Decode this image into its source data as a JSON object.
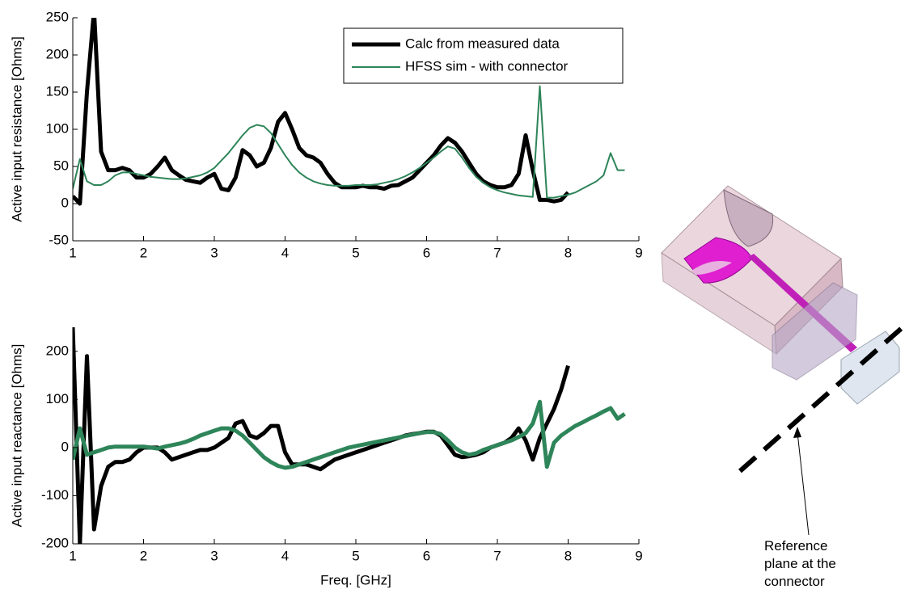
{
  "chart_data": [
    {
      "type": "line",
      "ylabel": "Active input resistance [Ohms]",
      "xlim": [
        1,
        9
      ],
      "xticks": [
        1,
        2,
        3,
        4,
        5,
        6,
        7,
        8,
        9
      ],
      "ylim": [
        -50,
        250
      ],
      "yticks": [
        -50,
        0,
        50,
        100,
        150,
        200,
        250
      ],
      "legend": "upper right",
      "x": [
        1,
        1.1,
        1.2,
        1.3,
        1.4,
        1.5,
        1.6,
        1.7,
        1.8,
        1.9,
        2,
        2.1,
        2.2,
        2.3,
        2.4,
        2.5,
        2.6,
        2.7,
        2.8,
        2.9,
        3,
        3.1,
        3.2,
        3.3,
        3.4,
        3.5,
        3.6,
        3.7,
        3.8,
        3.9,
        4,
        4.1,
        4.2,
        4.3,
        4.4,
        4.5,
        4.6,
        4.7,
        4.8,
        4.9,
        5,
        5.1,
        5.2,
        5.3,
        5.4,
        5.5,
        5.6,
        5.7,
        5.8,
        5.9,
        6,
        6.1,
        6.2,
        6.3,
        6.4,
        6.5,
        6.6,
        6.7,
        6.8,
        6.9,
        7,
        7.1,
        7.2,
        7.3,
        7.4,
        7.5,
        7.6,
        7.7,
        7.8,
        7.9,
        8,
        8.1,
        8.2,
        8.3,
        8.4,
        8.5,
        8.6,
        8.7,
        8.8
      ],
      "series": [
        {
          "name": "Calc from measured data",
          "color": "#000000",
          "line_width": 5,
          "values": [
            10,
            0,
            150,
            260,
            70,
            45,
            45,
            48,
            45,
            35,
            35,
            40,
            50,
            62,
            45,
            38,
            32,
            30,
            28,
            35,
            40,
            20,
            18,
            35,
            72,
            65,
            50,
            55,
            75,
            110,
            122,
            100,
            75,
            65,
            62,
            55,
            40,
            28,
            22,
            22,
            22,
            24,
            22,
            22,
            20,
            24,
            25,
            30,
            35,
            45,
            55,
            65,
            78,
            88,
            82,
            70,
            55,
            40,
            30,
            25,
            22,
            22,
            25,
            40,
            92,
            45,
            5,
            5,
            3,
            5,
            15,
            null,
            null,
            null,
            null,
            null,
            null,
            null,
            null
          ]
        },
        {
          "name": "HFSS sim - with connector",
          "color": "#2e8559",
          "line_width": 2,
          "values": [
            20,
            60,
            30,
            25,
            25,
            30,
            38,
            42,
            42,
            40,
            38,
            36,
            35,
            34,
            33,
            33,
            34,
            36,
            38,
            42,
            48,
            58,
            68,
            80,
            92,
            102,
            106,
            104,
            95,
            80,
            65,
            52,
            42,
            35,
            30,
            27,
            25,
            24,
            24,
            24,
            25,
            25,
            25,
            26,
            28,
            30,
            33,
            37,
            42,
            48,
            55,
            62,
            70,
            77,
            74,
            62,
            48,
            36,
            28,
            22,
            18,
            15,
            13,
            11,
            10,
            9,
            158,
            8,
            8,
            10,
            12,
            15,
            20,
            25,
            30,
            38,
            68,
            45,
            45
          ]
        }
      ]
    },
    {
      "type": "line",
      "ylabel": "Active input reactance [Ohms]",
      "xlabel": "Freq. [GHz]",
      "xlim": [
        1,
        9
      ],
      "xticks": [
        1,
        2,
        3,
        4,
        5,
        6,
        7,
        8,
        9
      ],
      "ylim": [
        -200,
        250
      ],
      "yticks": [
        -200,
        -100,
        0,
        100,
        200
      ],
      "x": [
        1,
        1.1,
        1.2,
        1.3,
        1.4,
        1.5,
        1.6,
        1.7,
        1.8,
        1.9,
        2,
        2.1,
        2.2,
        2.3,
        2.4,
        2.5,
        2.6,
        2.7,
        2.8,
        2.9,
        3,
        3.1,
        3.2,
        3.3,
        3.4,
        3.5,
        3.6,
        3.7,
        3.8,
        3.9,
        4,
        4.1,
        4.2,
        4.3,
        4.4,
        4.5,
        4.6,
        4.7,
        4.8,
        4.9,
        5,
        5.1,
        5.2,
        5.3,
        5.4,
        5.5,
        5.6,
        5.7,
        5.8,
        5.9,
        6,
        6.1,
        6.2,
        6.3,
        6.4,
        6.5,
        6.6,
        6.7,
        6.8,
        6.9,
        7,
        7.1,
        7.2,
        7.3,
        7.4,
        7.5,
        7.6,
        7.7,
        7.8,
        7.9,
        8,
        8.1,
        8.2,
        8.3,
        8.4,
        8.5,
        8.6,
        8.7,
        8.8
      ],
      "series": [
        {
          "color": "#000000",
          "line_width": 5,
          "values": [
            250,
            -200,
            190,
            -170,
            -80,
            -40,
            -30,
            -30,
            -25,
            -10,
            0,
            0,
            0,
            -10,
            -25,
            -20,
            -15,
            -10,
            -5,
            -5,
            0,
            10,
            20,
            50,
            55,
            25,
            20,
            30,
            45,
            45,
            -10,
            -35,
            -35,
            -35,
            -40,
            -45,
            -35,
            -25,
            -20,
            -15,
            -10,
            -5,
            0,
            5,
            10,
            15,
            20,
            25,
            28,
            30,
            33,
            33,
            25,
            5,
            -15,
            -20,
            -18,
            -15,
            -10,
            0,
            5,
            10,
            20,
            40,
            15,
            -25,
            20,
            50,
            80,
            120,
            170,
            null,
            null,
            null,
            null,
            null,
            null,
            null,
            null
          ]
        },
        {
          "color": "#2e8559",
          "line_width": 5,
          "values": [
            -25,
            40,
            -15,
            -10,
            -5,
            0,
            2,
            2,
            2,
            2,
            2,
            0,
            -2,
            2,
            5,
            8,
            12,
            18,
            25,
            30,
            35,
            40,
            40,
            35,
            25,
            10,
            -5,
            -20,
            -30,
            -38,
            -42,
            -40,
            -35,
            -30,
            -25,
            -20,
            -15,
            -10,
            -5,
            0,
            3,
            6,
            9,
            12,
            15,
            18,
            21,
            24,
            27,
            30,
            32,
            32,
            28,
            15,
            0,
            -10,
            -15,
            -12,
            -5,
            0,
            5,
            10,
            15,
            22,
            30,
            50,
            95,
            -40,
            10,
            25,
            35,
            45,
            52,
            60,
            67,
            75,
            82,
            60,
            70
          ]
        }
      ]
    }
  ],
  "diagram": {
    "annotation": "Reference plane at the connector"
  }
}
